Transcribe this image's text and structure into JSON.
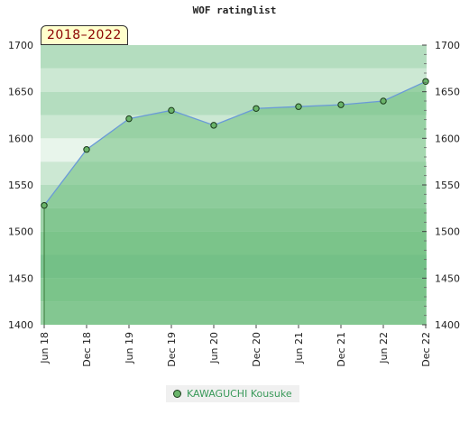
{
  "chart_data": {
    "type": "area",
    "title": "WOF ratinglist",
    "range_label": "2018–2022",
    "x": [
      "Jun 18",
      "Dec 18",
      "Jun 19",
      "Dec 19",
      "Jun 20",
      "Dec 20",
      "Jun 21",
      "Dec 21",
      "Jun 22",
      "Dec 22"
    ],
    "series": [
      {
        "name": "KAWAGUCHI Kousuke",
        "values": [
          1528,
          1588,
          1621,
          1630,
          1614,
          1632,
          1634,
          1636,
          1640,
          1661
        ]
      }
    ],
    "ylim": [
      1400,
      1700
    ],
    "yticks": [
      1400,
      1450,
      1500,
      1550,
      1600,
      1650,
      1700
    ],
    "grid": true,
    "legend_position": "bottom",
    "colors": {
      "line": "#6a9ad8",
      "area": "#6dbd7e",
      "marker": "#6ab46a",
      "marker_stroke": "#1a3a1a"
    }
  }
}
